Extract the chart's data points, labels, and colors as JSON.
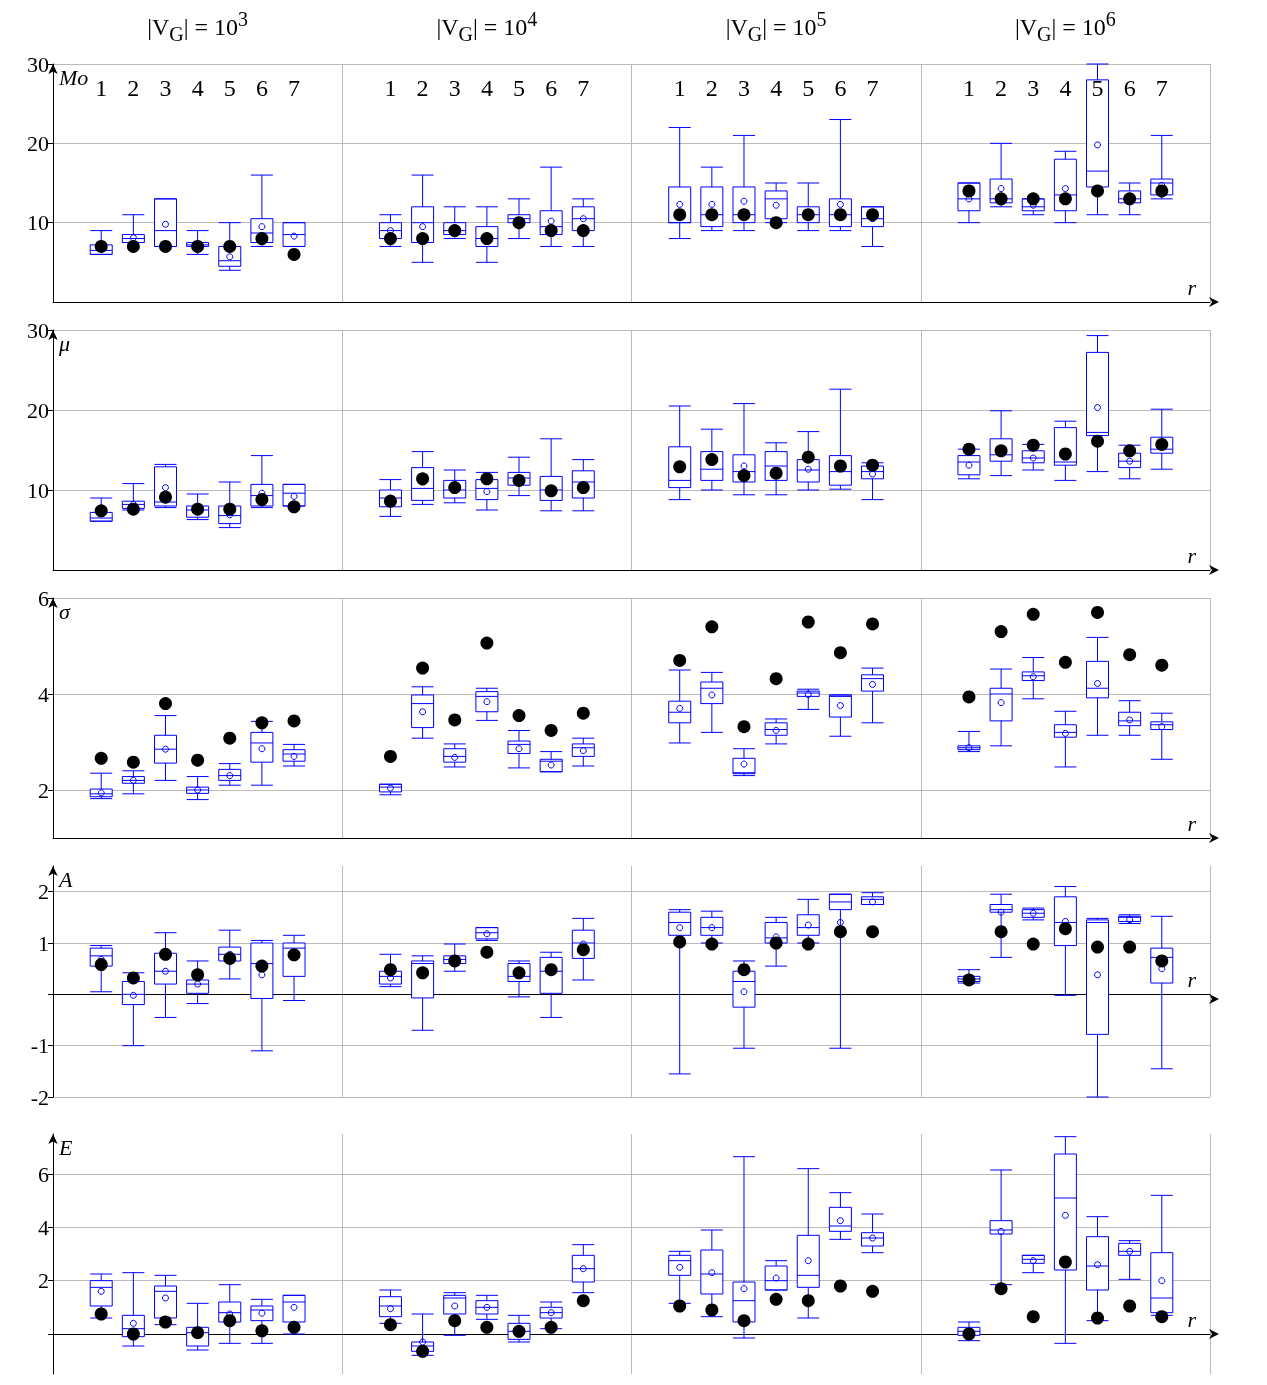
{
  "chart_data": [
    {
      "type": "box",
      "ylabel": "Mo",
      "xlabel": "r",
      "annotations": [
        "|V$_{G}$| = 10$^{3}$",
        "|V$_{G}$| = 10$^{4}$",
        "|V$_{G}$| = 10$^{5}$",
        "|V$_{G}$| = 10$^{6}$"
      ],
      "categories": [
        null,
        "1",
        "2",
        "3",
        "4",
        "5",
        "6",
        "7",
        null,
        null,
        "1",
        "2",
        "3",
        "4",
        "5",
        "6",
        "7",
        null,
        null,
        "1",
        "2",
        "3",
        "4",
        "5",
        "6",
        "7",
        null,
        null,
        "1",
        "2",
        "3",
        "4",
        "5",
        "6",
        "7",
        null
      ],
      "ylim": [
        0,
        30
      ],
      "yticks": [
        10,
        20,
        30
      ],
      "grid": true,
      "series": [
        {
          "type": "box",
          "color": "#0000ff",
          "boxes": [
            null,
            {
              "low": 6,
              "q1": 6,
              "median": 6.5,
              "q3": 7.2,
              "high": 9
            },
            {
              "low": 7.5,
              "q1": 7.5,
              "median": 8,
              "q3": 8.5,
              "high": 11,
              "mean": 8.1
            },
            {
              "low": 7,
              "q1": 7,
              "median": 9,
              "q3": 13,
              "high": 13,
              "mean": 9.8
            },
            {
              "low": 6,
              "q1": 7,
              "median": 7.2,
              "q3": 7.5,
              "high": 9
            },
            {
              "low": 4,
              "q1": 4.5,
              "median": 5.2,
              "q3": 7,
              "high": 10,
              "mean": 5.7
            },
            {
              "low": 7,
              "q1": 7.5,
              "median": 8.7,
              "q3": 10.5,
              "high": 16,
              "mean": 9.5
            },
            {
              "low": 7,
              "q1": 7,
              "median": 8.5,
              "q3": 10,
              "high": 10,
              "mean": 8.3
            },
            null,
            null,
            {
              "low": 7,
              "q1": 8,
              "median": 9,
              "q3": 10,
              "high": 11,
              "mean": 9
            },
            {
              "low": 5,
              "q1": 7.5,
              "median": 10,
              "q3": 12,
              "high": 16,
              "mean": 9.5
            },
            {
              "low": 8,
              "q1": 8.5,
              "median": 9,
              "q3": 10,
              "high": 12
            },
            {
              "low": 5,
              "q1": 7,
              "median": 8,
              "q3": 9.5,
              "high": 12
            },
            {
              "low": 8,
              "q1": 10,
              "median": 10.5,
              "q3": 11,
              "high": 13
            },
            {
              "low": 7,
              "q1": 8.5,
              "median": 9.5,
              "q3": 11.5,
              "high": 17,
              "mean": 10.2
            },
            {
              "low": 7,
              "q1": 9,
              "median": 10.5,
              "q3": 12,
              "high": 13,
              "mean": 10.5
            },
            null,
            null,
            {
              "low": 8,
              "q1": 10,
              "median": 10,
              "q3": 14.5,
              "high": 22,
              "mean": 12.3
            },
            {
              "low": 9,
              "q1": 9.5,
              "median": 11,
              "q3": 14.5,
              "high": 17,
              "mean": 12.3
            },
            {
              "low": 9,
              "q1": 10,
              "median": 11,
              "q3": 14.5,
              "high": 21,
              "mean": 12.7
            },
            {
              "low": 10,
              "q1": 10.5,
              "median": 13,
              "q3": 14,
              "high": 15,
              "mean": 12.2
            },
            {
              "low": 9,
              "q1": 10,
              "median": 11,
              "q3": 12,
              "high": 15
            },
            {
              "low": 9,
              "q1": 9.5,
              "median": 11,
              "q3": 13,
              "high": 23,
              "mean": 12.3
            },
            {
              "low": 7,
              "q1": 9.5,
              "median": 10.5,
              "q3": 12,
              "high": 12,
              "mean": 10.5
            },
            null,
            null,
            {
              "low": 10,
              "q1": 11.5,
              "median": 13,
              "q3": 15,
              "high": 15,
              "mean": 13
            },
            {
              "low": 12,
              "q1": 12.5,
              "median": 13,
              "q3": 15.5,
              "high": 20,
              "mean": 14.3
            },
            {
              "low": 11,
              "q1": 11.5,
              "median": 12,
              "q3": 13,
              "high": 13,
              "mean": 12.2
            },
            {
              "low": 10,
              "q1": 11.5,
              "median": 13.5,
              "q3": 18,
              "high": 19,
              "mean": 14.3
            },
            {
              "low": 11,
              "q1": 14.5,
              "median": 16.5,
              "q3": 28,
              "high": 30,
              "mean": 19.8
            },
            {
              "low": 11,
              "q1": 12.5,
              "median": 13,
              "q3": 14,
              "high": 15
            },
            {
              "low": 13,
              "q1": 13.5,
              "median": 15,
              "q3": 15.5,
              "high": 21,
              "mean": 14.7
            },
            null
          ]
        },
        {
          "type": "scatter",
          "color": "#000000",
          "marker": "circle",
          "values": [
            null,
            7,
            7,
            7,
            7,
            7,
            8,
            6,
            null,
            null,
            8,
            8,
            9,
            8,
            10,
            9,
            9,
            null,
            null,
            11,
            11,
            11,
            10,
            11,
            11,
            11,
            null,
            null,
            14,
            13,
            13,
            13,
            14,
            13,
            14,
            null
          ]
        }
      ]
    },
    {
      "type": "box",
      "ylabel": "μ",
      "xlabel": "r",
      "tick_labels": "y",
      "categories": [
        null,
        null,
        null,
        null,
        null,
        null,
        null,
        null,
        null,
        null,
        null,
        null,
        null,
        null,
        null,
        null,
        null,
        null,
        null,
        null,
        null,
        null,
        null,
        null,
        null,
        null,
        null,
        null,
        null,
        null,
        null,
        null,
        null,
        null,
        null,
        null
      ],
      "ylim": [
        0,
        30
      ],
      "yticks": [
        10,
        20,
        30
      ],
      "grid": true,
      "series": [
        {
          "type": "box",
          "color": "#0000ff",
          "boxes": [
            null,
            {
              "low": 6.1,
              "q1": 6.1,
              "median": 6.5,
              "q3": 7.2,
              "high": 9
            },
            {
              "low": 7.5,
              "q1": 7.7,
              "median": 8.2,
              "q3": 8.6,
              "high": 10.8,
              "mean": 8.2
            },
            {
              "low": 7.8,
              "q1": 8,
              "median": 8.5,
              "q3": 12.9,
              "high": 13.2,
              "mean": 10.3
            },
            {
              "low": 6.3,
              "q1": 6.6,
              "median": 7.5,
              "q3": 8,
              "high": 9.5,
              "mean": 7.3
            },
            {
              "low": 5.3,
              "q1": 5.8,
              "median": 6.8,
              "q3": 8,
              "high": 11,
              "mean": 6.9
            },
            {
              "low": 7.8,
              "q1": 8,
              "median": 9.3,
              "q3": 10.7,
              "high": 14.3,
              "mean": 9.6
            },
            {
              "low": 8,
              "q1": 8,
              "median": 9.6,
              "q3": 10.7,
              "high": 10.7,
              "mean": 9.2
            },
            null,
            null,
            {
              "low": 6.7,
              "q1": 7.9,
              "median": 9,
              "q3": 10,
              "high": 11.3,
              "mean": 9
            },
            {
              "low": 8.2,
              "q1": 8.7,
              "median": 10.2,
              "q3": 12.8,
              "high": 14.8,
              "mean": 11
            },
            {
              "low": 8.4,
              "q1": 9,
              "median": 10,
              "q3": 11.2,
              "high": 12.5
            },
            {
              "low": 7.5,
              "q1": 8.8,
              "median": 10.2,
              "q3": 11.3,
              "high": 12.2,
              "mean": 9.8
            },
            {
              "low": 9.3,
              "q1": 10.6,
              "median": 11.5,
              "q3": 12.2,
              "high": 14.1,
              "mean": 11.4
            },
            {
              "low": 7.4,
              "q1": 8.7,
              "median": 10,
              "q3": 11.7,
              "high": 16.4,
              "mean": 10.2
            },
            {
              "low": 7.4,
              "q1": 9,
              "median": 11,
              "q3": 12.4,
              "high": 13.8
            },
            null,
            null,
            {
              "low": 8.8,
              "q1": 10.3,
              "median": 11.2,
              "q3": 15.4,
              "high": 20.5
            },
            {
              "low": 10,
              "q1": 11.2,
              "median": 12.6,
              "q3": 14.8,
              "high": 17.6,
              "mean": 13.5
            },
            {
              "low": 9.4,
              "q1": 11,
              "median": 12.3,
              "q3": 14.4,
              "high": 20.8,
              "mean": 13
            },
            {
              "low": 9.4,
              "q1": 11.2,
              "median": 13,
              "q3": 14.8,
              "high": 15.9,
              "mean": 12.4
            },
            {
              "low": 10,
              "q1": 11,
              "median": 12.5,
              "q3": 13.8,
              "high": 17.3,
              "mean": 12.6
            },
            {
              "low": 10.1,
              "q1": 10.6,
              "median": 12.3,
              "q3": 14.3,
              "high": 22.6
            },
            {
              "low": 8.8,
              "q1": 11.4,
              "median": 12.3,
              "q3": 13,
              "high": 13.4,
              "mean": 12
            },
            null,
            null,
            {
              "low": 11.4,
              "q1": 11.9,
              "median": 13.5,
              "q3": 14.3,
              "high": 15.1,
              "mean": 13.1
            },
            {
              "low": 11.8,
              "q1": 13.6,
              "median": 14.4,
              "q3": 16.4,
              "high": 19.9
            },
            {
              "low": 12.5,
              "q1": 13.4,
              "median": 14,
              "q3": 14.9,
              "high": 15.7,
              "mean": 14
            },
            {
              "low": 11.2,
              "q1": 13.1,
              "median": 13.5,
              "q3": 17.8,
              "high": 18.6
            },
            {
              "low": 12.3,
              "q1": 16.8,
              "median": 17.2,
              "q3": 27.2,
              "high": 29.3,
              "mean": 20.3
            },
            {
              "low": 11.4,
              "q1": 12.8,
              "median": 13.6,
              "q3": 14.6,
              "high": 15.6,
              "mean": 13.6
            },
            {
              "low": 12.6,
              "q1": 14.6,
              "median": 15.1,
              "q3": 16.6,
              "high": 20.1,
              "mean": 15.7
            },
            null
          ]
        },
        {
          "type": "scatter",
          "color": "#000000",
          "marker": "circle",
          "values": [
            null,
            7.4,
            7.6,
            9.1,
            7.6,
            7.6,
            8.8,
            7.9,
            null,
            null,
            8.6,
            11.4,
            10.3,
            11.4,
            11.2,
            9.9,
            10.3,
            null,
            null,
            12.9,
            13.8,
            11.8,
            12.1,
            14.1,
            13,
            13.1,
            null,
            null,
            15.1,
            14.9,
            15.6,
            14.5,
            16.1,
            14.9,
            15.7,
            null
          ]
        }
      ]
    },
    {
      "type": "box",
      "ylabel": "σ",
      "xlabel": "r",
      "tick_labels": "y",
      "categories": [
        null,
        null,
        null,
        null,
        null,
        null,
        null,
        null,
        null,
        null,
        null,
        null,
        null,
        null,
        null,
        null,
        null,
        null,
        null,
        null,
        null,
        null,
        null,
        null,
        null,
        null,
        null,
        null,
        null,
        null,
        null,
        null,
        null,
        null,
        null,
        null
      ],
      "ylim": [
        1,
        6
      ],
      "yticks": [
        2,
        4,
        6
      ],
      "grid": true,
      "series": [
        {
          "type": "box",
          "color": "#0000ff",
          "boxes": [
            null,
            {
              "low": 1.82,
              "q1": 1.86,
              "median": 1.92,
              "q3": 2.02,
              "high": 2.35,
              "mean": 1.94
            },
            {
              "low": 1.92,
              "q1": 2.14,
              "median": 2.2,
              "q3": 2.28,
              "high": 2.4,
              "mean": 2.2
            },
            {
              "low": 2.2,
              "q1": 2.56,
              "median": 2.85,
              "q3": 3.14,
              "high": 3.55,
              "mean": 2.85
            },
            {
              "low": 1.8,
              "q1": 1.93,
              "median": 2,
              "q3": 2.06,
              "high": 2.28,
              "mean": 2
            },
            {
              "low": 2.1,
              "q1": 2.2,
              "median": 2.3,
              "q3": 2.43,
              "high": 2.55,
              "mean": 2.3
            },
            {
              "low": 2.1,
              "q1": 2.58,
              "median": 2.98,
              "q3": 3.2,
              "high": 3.43,
              "mean": 2.86
            },
            {
              "low": 2.5,
              "q1": 2.6,
              "median": 2.75,
              "q3": 2.84,
              "high": 2.95,
              "mean": 2.7
            },
            null,
            null,
            {
              "low": 1.9,
              "q1": 1.96,
              "median": 2.06,
              "q3": 2.12,
              "high": 2.12,
              "mean": 2.04
            },
            {
              "low": 3.08,
              "q1": 3.3,
              "median": 3.8,
              "q3": 3.98,
              "high": 4.15,
              "mean": 3.63
            },
            {
              "low": 2.48,
              "q1": 2.58,
              "median": 2.7,
              "q3": 2.86,
              "high": 2.96,
              "mean": 2.68
            },
            {
              "low": 3.45,
              "q1": 3.63,
              "median": 3.95,
              "q3": 4.05,
              "high": 4.12,
              "mean": 3.84
            },
            {
              "low": 2.46,
              "q1": 2.76,
              "median": 2.95,
              "q3": 3.02,
              "high": 3.24,
              "mean": 2.86
            },
            {
              "low": 2.38,
              "q1": 2.38,
              "median": 2.6,
              "q3": 2.64,
              "high": 2.8,
              "mean": 2.52
            },
            {
              "low": 2.5,
              "q1": 2.7,
              "median": 2.88,
              "q3": 2.96,
              "high": 3.08,
              "mean": 2.82
            },
            null,
            null,
            {
              "low": 2.98,
              "q1": 3.4,
              "median": 3.62,
              "q3": 3.85,
              "high": 4.5,
              "mean": 3.7
            },
            {
              "low": 3.2,
              "q1": 3.8,
              "median": 4.12,
              "q3": 4.25,
              "high": 4.45,
              "mean": 3.98
            },
            {
              "low": 2.3,
              "q1": 2.34,
              "median": 2.36,
              "q3": 2.66,
              "high": 2.86,
              "mean": 2.54
            },
            {
              "low": 2.96,
              "q1": 3.14,
              "median": 3.26,
              "q3": 3.4,
              "high": 3.48,
              "mean": 3.24
            },
            {
              "low": 3.68,
              "q1": 3.95,
              "median": 4.02,
              "q3": 4.06,
              "high": 4.1,
              "mean": 3.99
            },
            {
              "low": 3.12,
              "q1": 3.52,
              "median": 3.95,
              "q3": 3.98,
              "high": 3.98,
              "mean": 3.76
            },
            {
              "low": 3.4,
              "q1": 4.06,
              "median": 4.32,
              "q3": 4.4,
              "high": 4.54,
              "mean": 4.2
            },
            null,
            null,
            {
              "low": 2.8,
              "q1": 2.84,
              "median": 2.88,
              "q3": 2.92,
              "high": 3.22,
              "mean": 2.88
            },
            {
              "low": 2.92,
              "q1": 3.44,
              "median": 4,
              "q3": 4.12,
              "high": 4.52,
              "mean": 3.82
            },
            {
              "low": 3.9,
              "q1": 4.28,
              "median": 4.38,
              "q3": 4.46,
              "high": 4.76,
              "mean": 4.36
            },
            {
              "low": 2.48,
              "q1": 3.1,
              "median": 3.2,
              "q3": 3.36,
              "high": 3.64,
              "mean": 3.18
            },
            {
              "low": 3.14,
              "q1": 3.92,
              "median": 4.12,
              "q3": 4.68,
              "high": 5.18,
              "mean": 4.22
            },
            {
              "low": 3.14,
              "q1": 3.34,
              "median": 3.44,
              "q3": 3.62,
              "high": 3.86,
              "mean": 3.46
            },
            {
              "low": 2.64,
              "q1": 3.26,
              "median": 3.36,
              "q3": 3.42,
              "high": 3.6,
              "mean": 3.32
            },
            null
          ]
        },
        {
          "type": "scatter",
          "color": "#000000",
          "marker": "circle",
          "values": [
            null,
            2.66,
            2.58,
            3.8,
            2.62,
            3.08,
            3.4,
            3.44,
            null,
            null,
            2.7,
            4.54,
            3.46,
            5.06,
            3.55,
            3.24,
            3.6,
            null,
            null,
            4.7,
            5.4,
            3.32,
            4.32,
            5.5,
            4.86,
            5.46,
            null,
            null,
            3.94,
            5.3,
            5.66,
            4.66,
            5.7,
            4.82,
            4.6,
            null
          ]
        }
      ]
    },
    {
      "type": "box",
      "ylabel": "A",
      "xlabel": "r",
      "tick_labels": "y",
      "categories": [
        null,
        null,
        null,
        null,
        null,
        null,
        null,
        null,
        null,
        null,
        null,
        null,
        null,
        null,
        null,
        null,
        null,
        null,
        null,
        null,
        null,
        null,
        null,
        null,
        null,
        null,
        null,
        null,
        null,
        null,
        null,
        null,
        null,
        null,
        null,
        null
      ],
      "ylim": [
        -2,
        2.5
      ],
      "yticks": [
        -2,
        -1,
        {
          "value": 0,
          "label": null
        },
        1,
        2
      ],
      "grid": true,
      "series": [
        {
          "type": "box",
          "color": "#0000ff",
          "boxes": [
            null,
            {
              "low": 0.05,
              "q1": 0.55,
              "median": 0.75,
              "q3": 0.9,
              "high": 0.95,
              "mean": 0.68
            },
            {
              "low": -1,
              "q1": -0.2,
              "median": 0,
              "q3": 0.25,
              "high": 0.42,
              "mean": -0.02
            },
            {
              "low": -0.45,
              "q1": 0.2,
              "median": 0.45,
              "q3": 0.8,
              "high": 1.2,
              "mean": 0.45
            },
            {
              "low": -0.18,
              "q1": 0.02,
              "median": 0.2,
              "q3": 0.28,
              "high": 0.65,
              "mean": 0.2
            },
            {
              "low": 0.3,
              "q1": 0.65,
              "median": 0.78,
              "q3": 0.92,
              "high": 1.25,
              "mean": 0.78
            },
            {
              "low": -1.1,
              "q1": -0.08,
              "median": 0.6,
              "q3": 1,
              "high": 1.05,
              "mean": 0.38
            },
            {
              "low": -0.12,
              "q1": 0.35,
              "median": 0.9,
              "q3": 1,
              "high": 1.15
            },
            null,
            null,
            {
              "low": 0.15,
              "q1": 0.2,
              "median": 0.35,
              "q3": 0.45,
              "high": 0.78,
              "mean": 0.32
            },
            {
              "low": -0.7,
              "q1": -0.07,
              "median": 0.6,
              "q3": 0.65,
              "high": 0.75
            },
            {
              "low": 0.45,
              "q1": 0.6,
              "median": 0.68,
              "q3": 0.75,
              "high": 0.98,
              "mean": 0.7
            },
            {
              "low": 1.05,
              "q1": 1.08,
              "median": 1.2,
              "q3": 1.3,
              "high": 1.3,
              "mean": 1.18
            },
            {
              "low": -0.05,
              "q1": 0.25,
              "median": 0.35,
              "q3": 0.6,
              "high": 0.65,
              "mean": 0.4
            },
            {
              "low": -0.45,
              "q1": 0.02,
              "median": 0.45,
              "q3": 0.72,
              "high": 0.82,
              "mean": 0.45
            },
            {
              "low": 0.28,
              "q1": 0.7,
              "median": 1,
              "q3": 1.25,
              "high": 1.48,
              "mean": 0.98
            },
            null,
            null,
            {
              "low": -1.55,
              "q1": 1.15,
              "median": 1.4,
              "q3": 1.6,
              "high": 1.65,
              "mean": 1.3
            },
            {
              "low": 1,
              "q1": 1.15,
              "median": 1.3,
              "q3": 1.5,
              "high": 1.62,
              "mean": 1.3
            },
            {
              "low": -1.05,
              "q1": -0.25,
              "median": 0.25,
              "q3": 0.45,
              "high": 0.65,
              "mean": 0.05
            },
            {
              "low": 0.55,
              "q1": 1,
              "median": 1.1,
              "q3": 1.4,
              "high": 1.5,
              "mean": 1.12
            },
            {
              "low": 1,
              "q1": 1.15,
              "median": 1.3,
              "q3": 1.55,
              "high": 1.85,
              "mean": 1.35
            },
            {
              "low": -1.05,
              "q1": 1.65,
              "median": 1.8,
              "q3": 1.95,
              "high": 1.95,
              "mean": 1.4
            },
            {
              "low": 1.75,
              "q1": 1.75,
              "median": 1.85,
              "q3": 1.9,
              "high": 1.98,
              "mean": 1.8
            },
            null,
            null,
            {
              "low": 0.22,
              "q1": 0.25,
              "median": 0.3,
              "q3": 0.35,
              "high": 0.48
            },
            {
              "low": 0.72,
              "q1": 1.6,
              "median": 1.65,
              "q3": 1.75,
              "high": 1.95,
              "mean": 1.6
            },
            {
              "low": 1.45,
              "q1": 1.5,
              "median": 1.58,
              "q3": 1.65,
              "high": 1.68,
              "mean": 1.58
            },
            {
              "low": -0.02,
              "q1": 0.95,
              "median": 1.4,
              "q3": 1.9,
              "high": 2.1,
              "mean": 1.42
            },
            {
              "low": -2,
              "q1": -0.78,
              "median": 1.4,
              "q3": 1.45,
              "high": 1.48,
              "mean": 0.38
            },
            {
              "low": 1.38,
              "q1": 1.42,
              "median": 1.5,
              "q3": 1.52,
              "high": 1.55,
              "mean": 1.45
            },
            {
              "low": -1.45,
              "q1": 0.22,
              "median": 0.72,
              "q3": 0.9,
              "high": 1.52,
              "mean": 0.5
            },
            null
          ]
        },
        {
          "type": "scatter",
          "color": "#000000",
          "marker": "circle",
          "values": [
            null,
            0.58,
            0.32,
            0.78,
            0.38,
            0.7,
            0.55,
            0.77,
            null,
            null,
            0.48,
            0.42,
            0.65,
            0.82,
            0.42,
            0.48,
            0.87,
            null,
            null,
            1.02,
            0.98,
            0.48,
            1,
            0.98,
            1.22,
            1.22,
            null,
            null,
            0.28,
            1.22,
            0.98,
            1.28,
            0.92,
            0.92,
            0.65,
            null
          ]
        }
      ]
    },
    {
      "type": "box",
      "ylabel": "E",
      "xlabel": "r",
      "tick_labels": "y",
      "categories": [
        null,
        null,
        null,
        null,
        null,
        null,
        null,
        null,
        null,
        null,
        null,
        null,
        null,
        null,
        null,
        null,
        null,
        null,
        null,
        null,
        null,
        null,
        null,
        null,
        null,
        null,
        null,
        null,
        null,
        null,
        null,
        null,
        null,
        null,
        null,
        null
      ],
      "ylim": [
        -1.5,
        7.5
      ],
      "yticks": [
        {
          "value": 0,
          "label": null
        },
        2,
        4,
        6
      ],
      "grid": true,
      "series": [
        {
          "type": "box",
          "color": "#0000ff",
          "boxes": [
            null,
            {
              "low": 0.6,
              "q1": 1.05,
              "median": 1.75,
              "q3": 2,
              "high": 2.25,
              "mean": 1.6
            },
            {
              "low": -0.45,
              "q1": -0.1,
              "median": 0.2,
              "q3": 0.7,
              "high": 2.3,
              "mean": 0.4
            },
            {
              "low": 0.35,
              "q1": 0.6,
              "median": 1.6,
              "q3": 1.8,
              "high": 2.2,
              "mean": 1.35
            },
            {
              "low": -0.6,
              "q1": -0.45,
              "median": 0.05,
              "q3": 0.25,
              "high": 1.15
            },
            {
              "low": -0.35,
              "q1": 0.45,
              "median": 0.8,
              "q3": 1.2,
              "high": 1.85,
              "mean": 0.75
            },
            {
              "low": -0.35,
              "q1": 0.5,
              "median": 0.9,
              "q3": 1.05,
              "high": 1.3,
              "mean": 0.78
            },
            {
              "low": 0,
              "q1": 0.45,
              "median": 1.2,
              "q3": 1.45,
              "high": 1.45,
              "mean": 1
            },
            null,
            null,
            {
              "low": 0.4,
              "q1": 0.65,
              "median": 1.05,
              "q3": 1.4,
              "high": 1.65,
              "mean": 0.95
            },
            {
              "low": -0.8,
              "q1": -0.65,
              "median": -0.45,
              "q3": -0.3,
              "high": 0.75,
              "mean": -0.3
            },
            {
              "low": -0.05,
              "q1": 0.75,
              "median": 1.35,
              "q3": 1.45,
              "high": 1.55,
              "mean": 1.05
            },
            {
              "low": 0.55,
              "q1": 0.75,
              "median": 1,
              "q3": 1.25,
              "high": 1.45,
              "mean": 1
            },
            {
              "low": -0.3,
              "q1": -0.2,
              "median": 0.1,
              "q3": 0.4,
              "high": 0.7
            },
            {
              "low": 0.2,
              "q1": 0.6,
              "median": 0.8,
              "q3": 1,
              "high": 1.2,
              "mean": 0.8
            },
            {
              "low": 1.55,
              "q1": 1.95,
              "median": 2.45,
              "q3": 2.95,
              "high": 3.35,
              "mean": 2.45
            },
            null,
            null,
            {
              "low": 1.15,
              "q1": 2.2,
              "median": 2.75,
              "q3": 2.95,
              "high": 3.1,
              "mean": 2.5
            },
            {
              "low": 0.65,
              "q1": 1.5,
              "median": 2.25,
              "q3": 3.15,
              "high": 3.9,
              "mean": 2.3
            },
            {
              "low": -0.15,
              "q1": 0.45,
              "median": 1.25,
              "q3": 1.95,
              "high": 6.65,
              "mean": 1.7
            },
            {
              "low": 1.65,
              "q1": 1.65,
              "median": 2,
              "q3": 2.55,
              "high": 2.75,
              "mean": 2.1
            },
            {
              "low": 0.6,
              "q1": 1.75,
              "median": 2.2,
              "q3": 3.7,
              "high": 6.2,
              "mean": 2.75
            },
            {
              "low": 3.55,
              "q1": 3.85,
              "median": 4.05,
              "q3": 4.75,
              "high": 5.3,
              "mean": 4.25
            },
            {
              "low": 3.05,
              "q1": 3.3,
              "median": 3.6,
              "q3": 3.8,
              "high": 4.5,
              "mean": 3.6
            },
            null,
            null,
            {
              "low": -0.25,
              "q1": -0.05,
              "median": 0.1,
              "q3": 0.25,
              "high": 0.45,
              "mean": 0.05
            },
            {
              "low": 1.85,
              "q1": 3.75,
              "median": 3.9,
              "q3": 4.25,
              "high": 6.15,
              "mean": 3.85
            },
            {
              "low": 2.3,
              "q1": 2.65,
              "median": 2.8,
              "q3": 2.95,
              "high": 2.95,
              "mean": 2.75
            },
            {
              "low": -0.35,
              "q1": 2.4,
              "median": 5.1,
              "q3": 6.75,
              "high": 7.4,
              "mean": 4.45
            },
            {
              "low": 0.5,
              "q1": 1.65,
              "median": 2.55,
              "q3": 3.65,
              "high": 4.4,
              "mean": 2.6
            },
            {
              "low": 2.05,
              "q1": 2.95,
              "median": 3.1,
              "q3": 3.4,
              "high": 3.5,
              "mean": 3.1
            },
            {
              "low": 0.7,
              "q1": 0.8,
              "median": 1.35,
              "q3": 3.05,
              "high": 5.2,
              "mean": 2
            },
            null
          ]
        },
        {
          "type": "scatter",
          "color": "#000000",
          "marker": "circle",
          "values": [
            null,
            0.75,
            0,
            0.45,
            0.05,
            0.5,
            0.12,
            0.25,
            null,
            null,
            0.35,
            -0.65,
            0.5,
            0.25,
            0.1,
            0.25,
            1.25,
            null,
            null,
            1.05,
            0.9,
            0.5,
            1.3,
            1.25,
            1.8,
            1.6,
            null,
            null,
            0,
            1.7,
            0.65,
            2.7,
            0.6,
            1.05,
            0.65,
            null
          ]
        }
      ]
    }
  ]
}
